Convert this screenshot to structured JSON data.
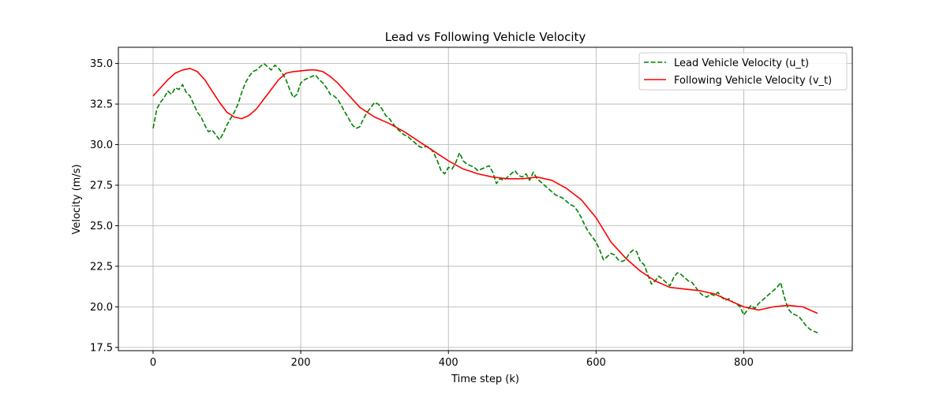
{
  "chart_data": {
    "type": "line",
    "title": "Lead vs Following Vehicle Velocity",
    "xlabel": "Time step (k)",
    "ylabel": "Velocity (m/s)",
    "xlim": [
      -47,
      947
    ],
    "ylim": [
      17.3,
      36.0
    ],
    "xticks": [
      0,
      200,
      400,
      600,
      800
    ],
    "yticks": [
      17.5,
      20.0,
      22.5,
      25.0,
      27.5,
      30.0,
      32.5,
      35.0
    ],
    "ytick_labels": [
      "17.5",
      "20.0",
      "22.5",
      "25.0",
      "27.5",
      "30.0",
      "32.5",
      "35.0"
    ],
    "grid": true,
    "legend_position": "upper right",
    "series": [
      {
        "name": "Lead Vehicle Velocity (u_t)",
        "color": "#008000",
        "style": "dashed",
        "x": [
          0,
          5,
          10,
          15,
          20,
          25,
          30,
          35,
          40,
          45,
          50,
          55,
          60,
          65,
          70,
          75,
          80,
          85,
          90,
          95,
          100,
          105,
          110,
          115,
          120,
          125,
          130,
          135,
          140,
          145,
          150,
          155,
          160,
          165,
          170,
          175,
          180,
          185,
          190,
          195,
          200,
          205,
          210,
          215,
          220,
          225,
          230,
          235,
          240,
          245,
          250,
          255,
          260,
          265,
          270,
          275,
          280,
          285,
          290,
          295,
          300,
          305,
          310,
          315,
          320,
          325,
          330,
          335,
          340,
          345,
          350,
          355,
          360,
          365,
          370,
          375,
          380,
          385,
          390,
          395,
          400,
          405,
          410,
          415,
          420,
          425,
          430,
          435,
          440,
          445,
          450,
          455,
          460,
          465,
          470,
          475,
          480,
          485,
          490,
          495,
          500,
          505,
          510,
          515,
          520,
          525,
          530,
          535,
          540,
          545,
          550,
          555,
          560,
          565,
          570,
          575,
          580,
          585,
          590,
          595,
          600,
          605,
          610,
          615,
          620,
          625,
          630,
          635,
          640,
          645,
          650,
          655,
          660,
          665,
          670,
          675,
          680,
          685,
          690,
          695,
          700,
          705,
          710,
          715,
          720,
          725,
          730,
          735,
          740,
          745,
          750,
          755,
          760,
          765,
          770,
          775,
          780,
          785,
          790,
          795,
          800,
          805,
          810,
          815,
          820,
          825,
          830,
          835,
          840,
          845,
          850,
          855,
          860,
          865,
          870,
          875,
          880,
          885,
          890,
          895,
          900
        ],
        "y": [
          31.0,
          32.2,
          32.6,
          32.9,
          33.3,
          33.1,
          33.5,
          33.4,
          33.7,
          33.2,
          33.0,
          32.5,
          32.0,
          31.7,
          31.2,
          30.8,
          30.9,
          30.6,
          30.3,
          30.7,
          31.2,
          31.6,
          32.0,
          32.5,
          33.2,
          33.8,
          34.2,
          34.5,
          34.6,
          34.8,
          35.0,
          34.8,
          34.6,
          34.9,
          34.7,
          34.4,
          34.0,
          33.4,
          32.9,
          33.1,
          33.8,
          34.0,
          34.1,
          34.2,
          34.3,
          34.0,
          33.8,
          33.5,
          33.1,
          33.0,
          32.8,
          32.4,
          32.0,
          31.6,
          31.2,
          31.0,
          31.1,
          31.6,
          32.0,
          32.3,
          32.6,
          32.5,
          32.2,
          31.8,
          31.6,
          31.3,
          31.0,
          30.8,
          30.6,
          30.5,
          30.3,
          30.1,
          29.9,
          29.8,
          29.9,
          29.8,
          29.5,
          29.0,
          28.4,
          28.2,
          28.6,
          28.5,
          28.9,
          29.5,
          29.0,
          28.8,
          28.7,
          28.6,
          28.4,
          28.5,
          28.6,
          28.7,
          28.3,
          27.6,
          27.9,
          27.8,
          28.0,
          28.2,
          28.4,
          28.1,
          28.0,
          28.2,
          27.8,
          28.3,
          27.9,
          27.7,
          27.5,
          27.3,
          27.1,
          26.9,
          26.8,
          26.7,
          26.5,
          26.3,
          26.2,
          25.9,
          25.5,
          25.0,
          24.6,
          24.3,
          24.0,
          23.5,
          22.9,
          23.1,
          23.3,
          23.2,
          22.9,
          22.8,
          22.9,
          23.3,
          23.5,
          23.4,
          22.8,
          22.6,
          22.0,
          21.4,
          21.6,
          21.9,
          21.7,
          21.5,
          21.3,
          21.8,
          22.1,
          22.0,
          21.8,
          21.6,
          21.5,
          21.2,
          20.9,
          20.7,
          20.6,
          20.8,
          20.7,
          20.9,
          20.6,
          20.4,
          20.5,
          20.3,
          20.2,
          20.0,
          19.5,
          19.8,
          20.1,
          19.9,
          20.2,
          20.4,
          20.6,
          20.8,
          21.0,
          21.2,
          21.5,
          20.6,
          19.9,
          19.6,
          19.5,
          19.4,
          19.1,
          18.8,
          18.6,
          18.5,
          18.4
        ]
      },
      {
        "name": "Following Vehicle Velocity (v_t)",
        "color": "#ff0000",
        "style": "solid",
        "x": [
          0,
          10,
          20,
          30,
          40,
          50,
          60,
          70,
          80,
          90,
          100,
          110,
          120,
          130,
          140,
          150,
          160,
          170,
          180,
          190,
          200,
          210,
          220,
          230,
          240,
          250,
          260,
          270,
          280,
          290,
          300,
          320,
          340,
          360,
          380,
          400,
          420,
          440,
          460,
          480,
          500,
          520,
          540,
          560,
          580,
          600,
          620,
          640,
          660,
          680,
          700,
          720,
          740,
          760,
          780,
          800,
          820,
          840,
          860,
          880,
          900
        ],
        "y": [
          33.0,
          33.5,
          34.0,
          34.4,
          34.6,
          34.7,
          34.5,
          34.0,
          33.3,
          32.6,
          32.0,
          31.7,
          31.6,
          31.8,
          32.2,
          32.8,
          33.4,
          34.0,
          34.4,
          34.5,
          34.55,
          34.6,
          34.6,
          34.5,
          34.2,
          33.8,
          33.3,
          32.8,
          32.3,
          32.0,
          31.7,
          31.3,
          30.8,
          30.2,
          29.6,
          29.0,
          28.5,
          28.2,
          28.0,
          27.9,
          27.9,
          28.0,
          27.8,
          27.3,
          26.6,
          25.5,
          24.0,
          23.0,
          22.2,
          21.6,
          21.2,
          21.1,
          21.0,
          20.8,
          20.4,
          20.0,
          19.8,
          20.0,
          20.1,
          20.0,
          19.6
        ]
      }
    ]
  }
}
